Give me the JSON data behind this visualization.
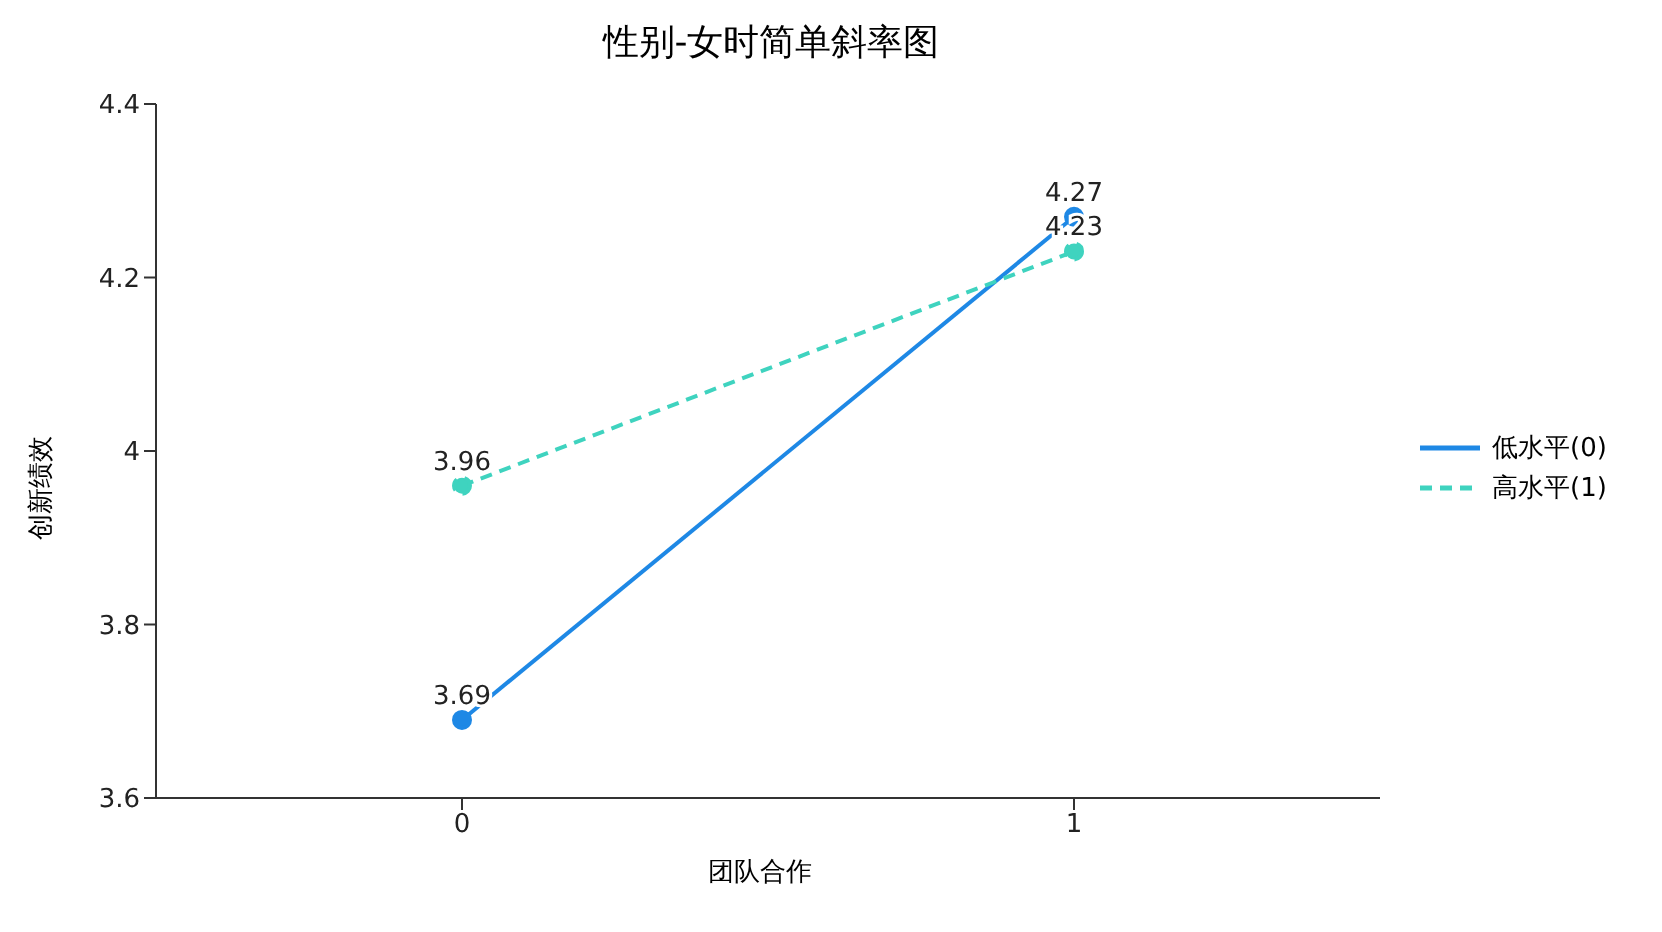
{
  "chart_data": {
    "type": "line",
    "title": "性别-女时简单斜率图",
    "xlabel": "团队合作",
    "ylabel": "创新绩效",
    "categories": [
      "0",
      "1"
    ],
    "series": [
      {
        "name": "低水平(0)",
        "color": "#1e88e5",
        "values": [
          3.69,
          4.27
        ],
        "line_style": "solid"
      },
      {
        "name": "高水平(1)",
        "color": "#3fd3bf",
        "values": [
          3.96,
          4.23
        ],
        "line_style": "dashed"
      }
    ],
    "ylim": [
      3.6,
      4.4
    ],
    "yticks": [
      3.6,
      3.8,
      4,
      4.2,
      4.4
    ],
    "grid": false,
    "legend": "right",
    "marker": "circle",
    "data_labels": true
  }
}
